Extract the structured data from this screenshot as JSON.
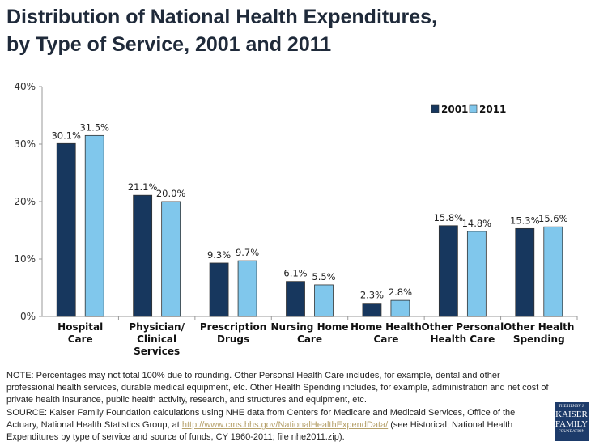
{
  "title_line1": "Distribution of National Health Expenditures,",
  "title_line2": "by Type of Service, 2001 and 2011",
  "chart_data": {
    "type": "bar",
    "title": "Distribution of National Health Expenditures, by Type of Service, 2001 and 2011",
    "categories": [
      [
        "Hospital",
        "Care"
      ],
      [
        "Physician/",
        "Clinical",
        "Services"
      ],
      [
        "Prescription",
        "Drugs"
      ],
      [
        "Nursing Home",
        "Care"
      ],
      [
        "Home Health",
        "Care"
      ],
      [
        "Other Personal",
        "Health Care"
      ],
      [
        "Other Health",
        "Spending"
      ]
    ],
    "series": [
      {
        "name": "2001",
        "color": "#17375e",
        "values": [
          30.1,
          21.1,
          9.3,
          6.1,
          2.3,
          15.8,
          15.3
        ],
        "labels": [
          "30.1%",
          "21.1%",
          "9.3%",
          "6.1%",
          "2.3%",
          "15.8%",
          "15.3%"
        ]
      },
      {
        "name": "2011",
        "color": "#80c7ec",
        "values": [
          31.5,
          20.0,
          9.7,
          5.5,
          2.8,
          14.8,
          15.6
        ],
        "labels": [
          "31.5%",
          "20.0%",
          "9.7%",
          "5.5%",
          "2.8%",
          "14.8%",
          "15.6%"
        ]
      }
    ],
    "yticks": [
      "0%",
      "10%",
      "20%",
      "30%",
      "40%"
    ],
    "ylim": [
      0,
      40
    ],
    "xlabel": "",
    "ylabel": "",
    "legend": "top-right",
    "grid": false
  },
  "note": "NOTE: Percentages may not total 100% due to rounding. Other Personal Health Care includes, for example, dental and other professional health services, durable medical equipment, etc. Other Health Spending includes, for example, administration and net cost of private health insurance, public health activity, research, and structures and equipment, etc.",
  "source_prefix": "SOURCE: Kaiser Family Foundation calculations using NHE data from Centers for Medicare and Medicaid Services, Office of the Actuary, National Health Statistics Group, at ",
  "source_link": "http://www.cms.hhs.gov/NationalHealthExpendData/",
  "source_suffix": " (see Historical; National Health Expenditures by type of service and source of funds, CY 1960-2011; file nhe2011.zip).",
  "logo": {
    "line1": "THE HENRY J.",
    "line2": "KAISER",
    "line3": "FAMILY",
    "line4": "FOUNDATION"
  }
}
